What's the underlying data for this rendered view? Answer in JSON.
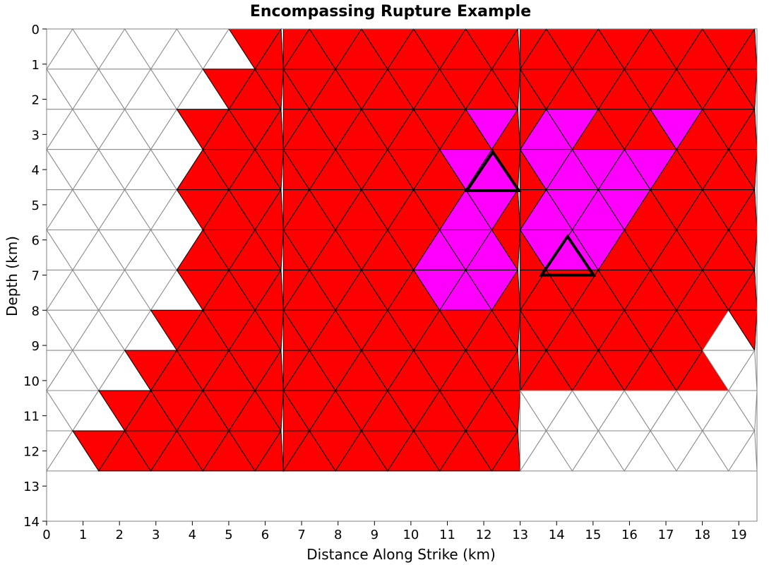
{
  "chart_data": {
    "type": "fault-mesh",
    "title": "Encompassing Rupture Example",
    "xlabel": "Distance Along Strike (km)",
    "ylabel": "Depth (km)",
    "xlim": [
      0,
      19.5
    ],
    "ylim": [
      14,
      0
    ],
    "y_inverted": true,
    "grid": false,
    "x_ticks": [
      "0",
      "1",
      "2",
      "3",
      "4",
      "5",
      "6",
      "7",
      "8",
      "9",
      "10",
      "11",
      "12",
      "13",
      "14",
      "15",
      "16",
      "17",
      "18",
      "19"
    ],
    "y_ticks": [
      "0",
      "1",
      "2",
      "3",
      "4",
      "5",
      "6",
      "7",
      "8",
      "9",
      "10",
      "11",
      "12",
      "13",
      "14"
    ],
    "colors": {
      "ruptured": "#ff0000",
      "subsection": "#ff00ff",
      "unruptured": "#ffffff",
      "ruptured_edge": "#000000",
      "unruptured_edge": "#888888",
      "hypocenter_edge": "#000000"
    },
    "mesh": {
      "row_height_km": 1.1428,
      "triangle_width_km": 1.43,
      "rows": 11
    },
    "sections": [
      {
        "name": "section-1",
        "x_range": [
          0,
          6.5
        ],
        "rupture_left_edge_km": [
          [
            5.75,
            0
          ],
          [
            4.3,
            2.3
          ],
          [
            3.6,
            3.45
          ],
          [
            4.3,
            4.6
          ],
          [
            3.6,
            5.75
          ],
          [
            4.3,
            6.9
          ],
          [
            0.7,
            13
          ]
        ],
        "rupture_right_edge_km": [
          [
            5.75,
            0
          ],
          [
            6.5,
            1.15
          ],
          [
            5.75,
            2.3
          ],
          [
            6.5,
            3.45
          ],
          [
            5.75,
            4.6
          ],
          [
            6.5,
            5.75
          ],
          [
            5.75,
            6.9
          ],
          [
            6.5,
            8.05
          ],
          [
            5.75,
            9.2
          ],
          [
            6.5,
            10.35
          ],
          [
            5.75,
            11.5
          ],
          [
            6.5,
            13
          ]
        ]
      },
      {
        "name": "section-2",
        "x_range": [
          6.5,
          13.0
        ],
        "fully_ruptured": true
      },
      {
        "name": "section-3",
        "x_range": [
          13.0,
          19.5
        ],
        "rupture_bottom_km": 10.6,
        "unruptured_corner": "bottom-right"
      }
    ],
    "highlighted_patches": [
      {
        "section": "section-2",
        "depth_range_km": [
          2.3,
          8.0
        ],
        "x_range_km": [
          10.4,
          12.9
        ]
      },
      {
        "section": "section-3",
        "depth_range_km": [
          2.3,
          7.0
        ],
        "x_range_km": [
          13.6,
          17.9
        ]
      }
    ],
    "hypocenters": [
      {
        "x": 12.25,
        "depth": [
          3.5,
          4.6
        ]
      },
      {
        "x": 14.3,
        "depth": [
          5.9,
          7.0
        ]
      }
    ]
  }
}
